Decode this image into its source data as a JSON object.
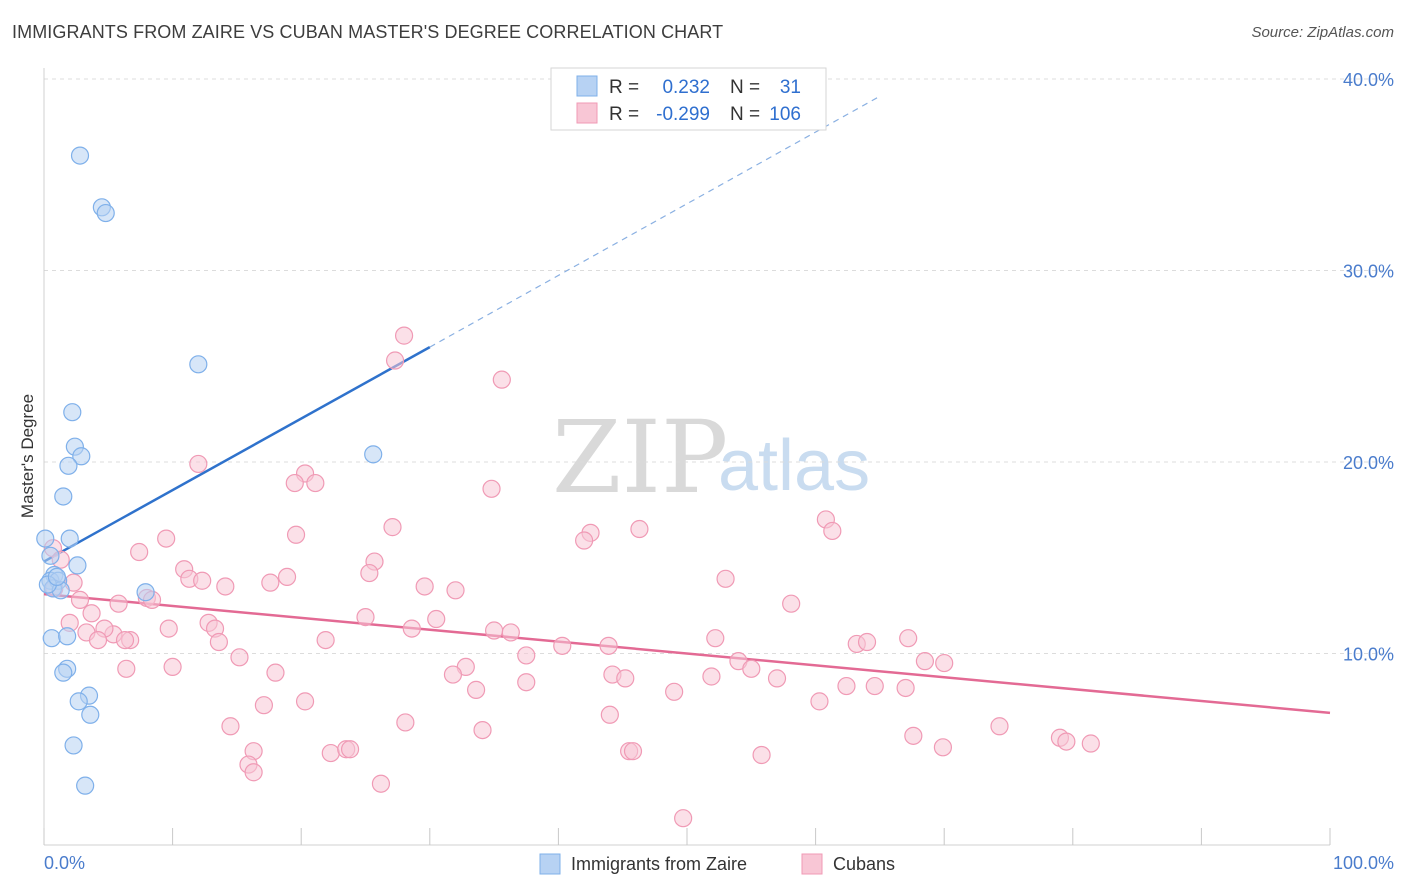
{
  "chart_data": {
    "type": "scatter",
    "title": "IMMIGRANTS FROM ZAIRE VS CUBAN MASTER'S DEGREE CORRELATION CHART",
    "source": "Source: ZipAtlas.com",
    "xlabel": "",
    "ylabel": "Master's Degree",
    "xlim": [
      0,
      100
    ],
    "ylim": [
      0,
      40
    ],
    "x_tick_labels": [
      "0.0%",
      "100.0%"
    ],
    "y_ticks": [
      10,
      20,
      30,
      40
    ],
    "y_tick_labels": [
      "10.0%",
      "20.0%",
      "30.0%",
      "40.0%"
    ],
    "grid": true,
    "legend": {
      "position": "top-center",
      "rows": [
        {
          "r_label": "R =",
          "r_value": "0.232",
          "n_label": "N =",
          "n_value": "31"
        },
        {
          "r_label": "R =",
          "r_value": "-0.299",
          "n_label": "N =",
          "n_value": "106"
        }
      ]
    },
    "watermark": {
      "part1": "ZIP",
      "part2": "atlas"
    },
    "series": [
      {
        "name": "Immigrants from Zaire",
        "color": "#7fb0ea",
        "fill": "#b7d2f3",
        "line_color": "#2f72cc",
        "trend": {
          "x_solid": [
            0,
            30
          ],
          "y_solid": [
            14.8,
            26.0
          ],
          "x_dashed": [
            30,
            65
          ],
          "y_dashed": [
            26.0,
            39.1
          ]
        },
        "points": [
          [
            2.8,
            36.0
          ],
          [
            4.5,
            33.3
          ],
          [
            4.8,
            33.0
          ],
          [
            12.0,
            25.1
          ],
          [
            2.2,
            22.6
          ],
          [
            2.4,
            20.8
          ],
          [
            2.9,
            20.3
          ],
          [
            1.9,
            19.8
          ],
          [
            1.5,
            18.2
          ],
          [
            25.6,
            20.4
          ],
          [
            0.1,
            16.0
          ],
          [
            2.0,
            16.0
          ],
          [
            0.5,
            15.1
          ],
          [
            2.6,
            14.6
          ],
          [
            0.8,
            14.1
          ],
          [
            0.5,
            13.8
          ],
          [
            1.1,
            13.8
          ],
          [
            0.7,
            13.4
          ],
          [
            1.3,
            13.3
          ],
          [
            7.9,
            13.2
          ],
          [
            0.6,
            10.8
          ],
          [
            1.8,
            10.9
          ],
          [
            1.8,
            9.2
          ],
          [
            1.5,
            9.0
          ],
          [
            3.5,
            7.8
          ],
          [
            2.7,
            7.5
          ],
          [
            3.6,
            6.8
          ],
          [
            2.3,
            5.2
          ],
          [
            3.2,
            3.1
          ],
          [
            0.3,
            13.6
          ],
          [
            1.0,
            14.0
          ]
        ]
      },
      {
        "name": "Cubans",
        "color": "#f09ab5",
        "fill": "#f8c6d5",
        "line_color": "#e36a94",
        "trend": {
          "x_solid": [
            0,
            100
          ],
          "y_solid": [
            13.1,
            6.9
          ]
        },
        "points": [
          [
            28.0,
            26.6
          ],
          [
            27.3,
            25.3
          ],
          [
            35.6,
            24.3
          ],
          [
            12.0,
            19.9
          ],
          [
            20.3,
            19.4
          ],
          [
            19.5,
            18.9
          ],
          [
            21.1,
            18.9
          ],
          [
            34.8,
            18.6
          ],
          [
            0.7,
            15.5
          ],
          [
            1.3,
            14.9
          ],
          [
            9.5,
            16.0
          ],
          [
            7.4,
            15.3
          ],
          [
            19.6,
            16.2
          ],
          [
            27.1,
            16.6
          ],
          [
            42.5,
            16.3
          ],
          [
            42.0,
            15.9
          ],
          [
            46.3,
            16.5
          ],
          [
            60.8,
            17.0
          ],
          [
            61.3,
            16.4
          ],
          [
            10.9,
            14.4
          ],
          [
            25.7,
            14.8
          ],
          [
            25.3,
            14.2
          ],
          [
            2.3,
            13.7
          ],
          [
            11.3,
            13.9
          ],
          [
            12.3,
            13.8
          ],
          [
            14.1,
            13.5
          ],
          [
            17.6,
            13.7
          ],
          [
            18.9,
            14.0
          ],
          [
            29.6,
            13.5
          ],
          [
            32.0,
            13.3
          ],
          [
            53.0,
            13.9
          ],
          [
            0.8,
            13.4
          ],
          [
            2.8,
            12.8
          ],
          [
            5.8,
            12.6
          ],
          [
            8.0,
            12.9
          ],
          [
            8.4,
            12.8
          ],
          [
            3.7,
            12.1
          ],
          [
            2.0,
            11.6
          ],
          [
            25.0,
            11.9
          ],
          [
            30.5,
            11.8
          ],
          [
            58.1,
            12.6
          ],
          [
            3.3,
            11.1
          ],
          [
            5.4,
            11.0
          ],
          [
            4.7,
            11.3
          ],
          [
            9.7,
            11.3
          ],
          [
            12.8,
            11.6
          ],
          [
            13.3,
            11.3
          ],
          [
            28.6,
            11.3
          ],
          [
            35.0,
            11.2
          ],
          [
            36.3,
            11.1
          ],
          [
            4.2,
            10.7
          ],
          [
            6.7,
            10.7
          ],
          [
            13.6,
            10.6
          ],
          [
            21.9,
            10.7
          ],
          [
            40.3,
            10.4
          ],
          [
            43.9,
            10.4
          ],
          [
            52.2,
            10.8
          ],
          [
            63.2,
            10.5
          ],
          [
            64.0,
            10.6
          ],
          [
            67.2,
            10.8
          ],
          [
            15.2,
            9.8
          ],
          [
            37.5,
            9.9
          ],
          [
            6.4,
            9.2
          ],
          [
            10.0,
            9.3
          ],
          [
            18.0,
            9.0
          ],
          [
            32.8,
            9.3
          ],
          [
            31.8,
            8.9
          ],
          [
            44.2,
            8.9
          ],
          [
            54.0,
            9.6
          ],
          [
            55.0,
            9.2
          ],
          [
            68.5,
            9.6
          ],
          [
            70.0,
            9.5
          ],
          [
            37.5,
            8.5
          ],
          [
            33.6,
            8.1
          ],
          [
            45.2,
            8.7
          ],
          [
            49.0,
            8.0
          ],
          [
            51.9,
            8.8
          ],
          [
            57.0,
            8.7
          ],
          [
            62.4,
            8.3
          ],
          [
            64.6,
            8.3
          ],
          [
            67.0,
            8.2
          ],
          [
            17.1,
            7.3
          ],
          [
            20.3,
            7.5
          ],
          [
            60.3,
            7.5
          ],
          [
            44.0,
            6.8
          ],
          [
            14.5,
            6.2
          ],
          [
            28.1,
            6.4
          ],
          [
            34.1,
            6.0
          ],
          [
            74.3,
            6.2
          ],
          [
            67.6,
            5.7
          ],
          [
            69.9,
            5.1
          ],
          [
            79.0,
            5.6
          ],
          [
            79.5,
            5.4
          ],
          [
            81.4,
            5.3
          ],
          [
            16.3,
            4.9
          ],
          [
            22.3,
            4.8
          ],
          [
            23.5,
            5.0
          ],
          [
            23.8,
            5.0
          ],
          [
            45.5,
            4.9
          ],
          [
            45.8,
            4.9
          ],
          [
            55.8,
            4.7
          ],
          [
            15.9,
            4.2
          ],
          [
            16.3,
            3.8
          ],
          [
            26.2,
            3.2
          ],
          [
            49.7,
            1.4
          ],
          [
            6.3,
            10.7
          ]
        ]
      }
    ]
  }
}
